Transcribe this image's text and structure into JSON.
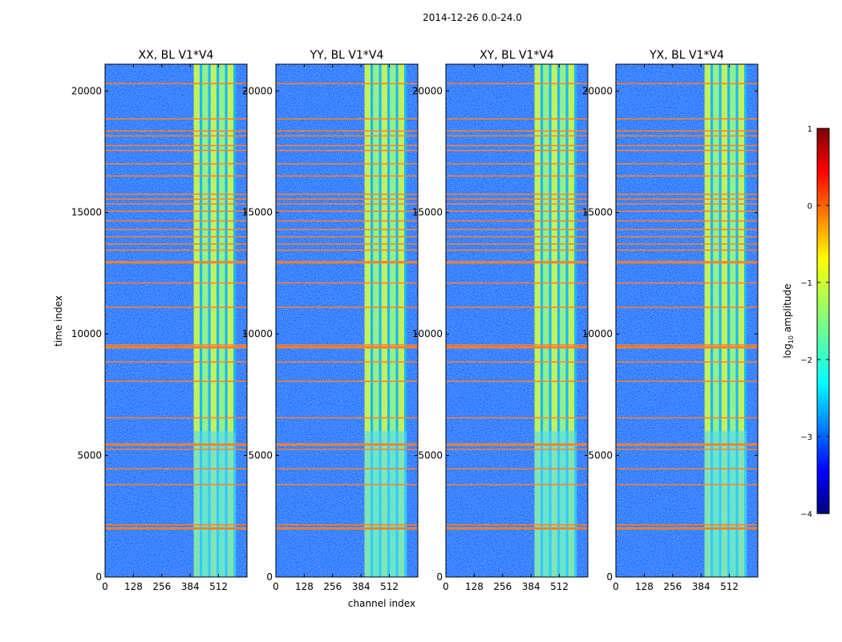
{
  "chart_data": {
    "type": "heatmap",
    "suptitle": "2014-12-26 0.0-24.0",
    "xlabel": "channel index",
    "ylabel": "time index",
    "xlim": [
      0,
      640
    ],
    "ylim": [
      0,
      21100
    ],
    "x_ticks": [
      0,
      128,
      256,
      384,
      512
    ],
    "y_ticks": [
      0,
      5000,
      10000,
      15000,
      20000
    ],
    "panels": [
      {
        "title": "XX, BL V1*V4",
        "y_tick_labels": [
          "0",
          "5000",
          "10000",
          "15000",
          "20000"
        ]
      },
      {
        "title": "YY, BL V1*V4",
        "y_tick_labels": [
          "0",
          "5000",
          "10000",
          "15000",
          "20000"
        ]
      },
      {
        "title": "XY, BL V1*V4",
        "y_tick_labels": [
          "0",
          "5000",
          "10000",
          "15000",
          "20000"
        ]
      },
      {
        "title": "YX, BL V1*V4",
        "y_tick_labels": [
          "0",
          "5000",
          "10000",
          "15000",
          "20000"
        ]
      }
    ],
    "colorbar": {
      "label": "log10 amplitude",
      "label_main": "log",
      "label_sub": "10",
      "label_rest": " amplitude",
      "range": [
        -4,
        1
      ],
      "ticks": [
        1,
        0,
        -1,
        -2,
        -3,
        -4
      ],
      "tick_labels": [
        "1",
        "0",
        "−1",
        "−2",
        "−3",
        "−4"
      ],
      "colormap": "jet"
    },
    "bright_channel_band": [
      400,
      590
    ],
    "flagged_time_rows": [
      2000,
      2150,
      3800,
      4450,
      5250,
      5450,
      6550,
      8050,
      8850,
      9450,
      9550,
      11100,
      12100,
      12950,
      13450,
      13700,
      14000,
      14300,
      14650,
      15050,
      15350,
      15550,
      15750,
      16500,
      17000,
      17550,
      17750,
      18150,
      18350,
      18850,
      20300
    ],
    "colors": {
      "background": "#ffffff",
      "flag_line": "#ff7f2a",
      "low": "#1e64ff",
      "high": "#ffe000"
    }
  }
}
